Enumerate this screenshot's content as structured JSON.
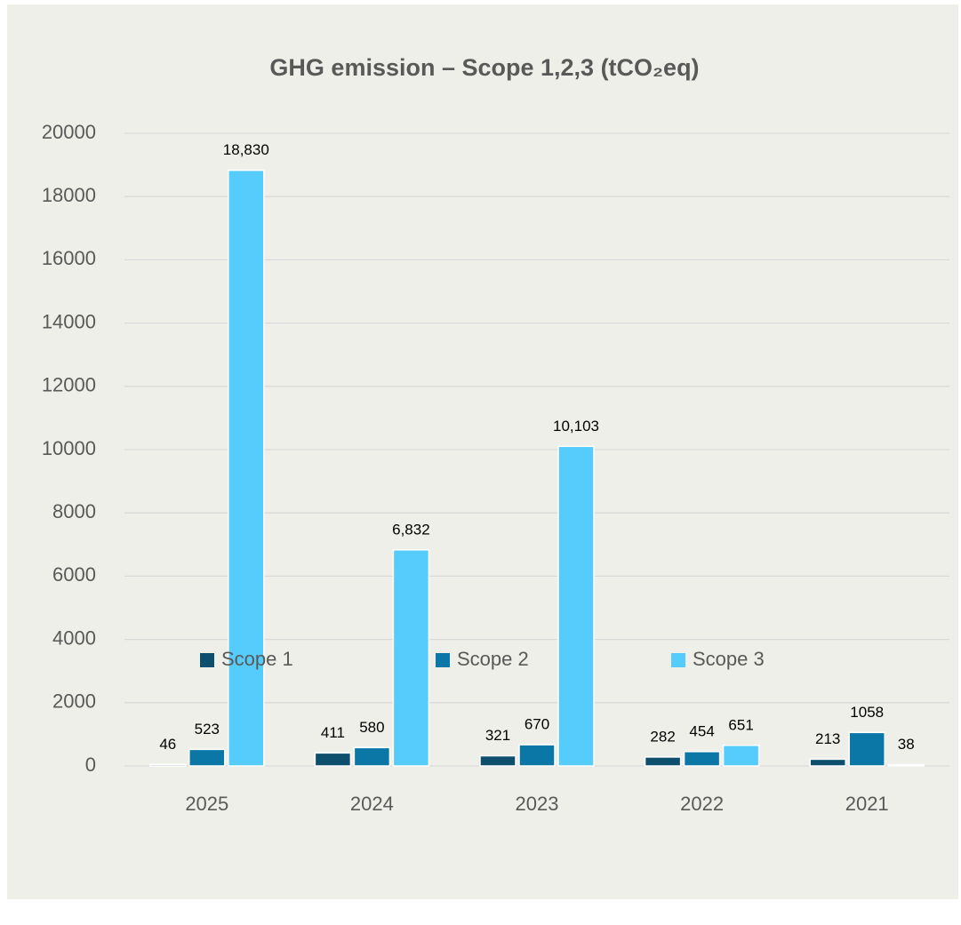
{
  "chart_data": {
    "type": "bar",
    "title": "GHG emission – Scope 1,2,3 (tCO₂eq)",
    "categories": [
      "2025",
      "2024",
      "2023",
      "2022",
      "2021"
    ],
    "series": [
      {
        "name": "Scope 1",
        "color": "#0e4f6e",
        "values": [
          46,
          411,
          321,
          282,
          213
        ]
      },
      {
        "name": "Scope 2",
        "color": "#0a77a6",
        "values": [
          523,
          580,
          670,
          454,
          1058
        ]
      },
      {
        "name": "Scope 3",
        "color": "#55ccfc",
        "values": [
          18830,
          6832,
          10103,
          651,
          38
        ],
        "value_labels": [
          "18,830",
          "6,832",
          "10,103",
          "651",
          "38"
        ]
      }
    ],
    "ylim": [
      0,
      20000
    ],
    "yticks": [
      0,
      2000,
      4000,
      6000,
      8000,
      10000,
      12000,
      14000,
      16000,
      18000,
      20000
    ],
    "grid": true,
    "legend": "bottom"
  }
}
